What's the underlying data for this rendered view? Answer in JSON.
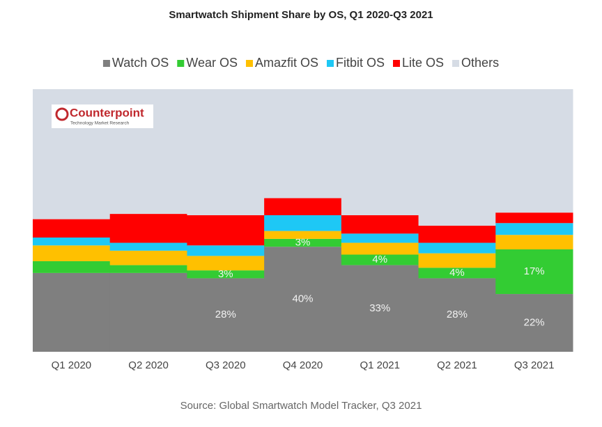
{
  "chart_data": {
    "type": "stacked_bar",
    "title": "Smartwatch Shipment Share by OS, Q1 2020-Q3 2021",
    "categories": [
      "Q1 2020",
      "Q2 2020",
      "Q3 2020",
      "Q4 2020",
      "Q1 2021",
      "Q2 2021",
      "Q3 2021"
    ],
    "series": [
      {
        "name": "Watch OS",
        "color": "#7f7f7f",
        "values": [
          30,
          30,
          28,
          40,
          33,
          28,
          22
        ],
        "value_labels": [
          null,
          null,
          "28%",
          "40%",
          "33%",
          "28%",
          "22%"
        ]
      },
      {
        "name": "Wear OS",
        "color": "#33cc33",
        "values": [
          4.5,
          3,
          3,
          3,
          4,
          4,
          17
        ],
        "value_labels": [
          null,
          null,
          "3%",
          "3%",
          "4%",
          "4%",
          "17%"
        ]
      },
      {
        "name": "Amazfit OS",
        "color": "#ffc000",
        "values": [
          6,
          5.5,
          5.5,
          3,
          4.5,
          5.5,
          5.5
        ]
      },
      {
        "name": "Fitbit OS",
        "color": "#1ec8f5",
        "values": [
          3,
          3,
          4,
          6,
          3.5,
          4,
          4.5
        ]
      },
      {
        "name": "Lite OS",
        "color": "#ff0000",
        "values": [
          7,
          11,
          11.5,
          6.5,
          7,
          6.5,
          4
        ]
      },
      {
        "name": "Others",
        "color": "#d6dce5",
        "values": [
          49.5,
          47.5,
          48,
          41.5,
          48,
          52,
          47
        ]
      }
    ],
    "ylim": [
      0,
      100
    ],
    "legend": "top",
    "logo": {
      "name": "Counterpoint",
      "tagline": "Technology Market Research"
    },
    "source": "Source: Global Smartwatch Model Tracker, Q3 2021"
  }
}
